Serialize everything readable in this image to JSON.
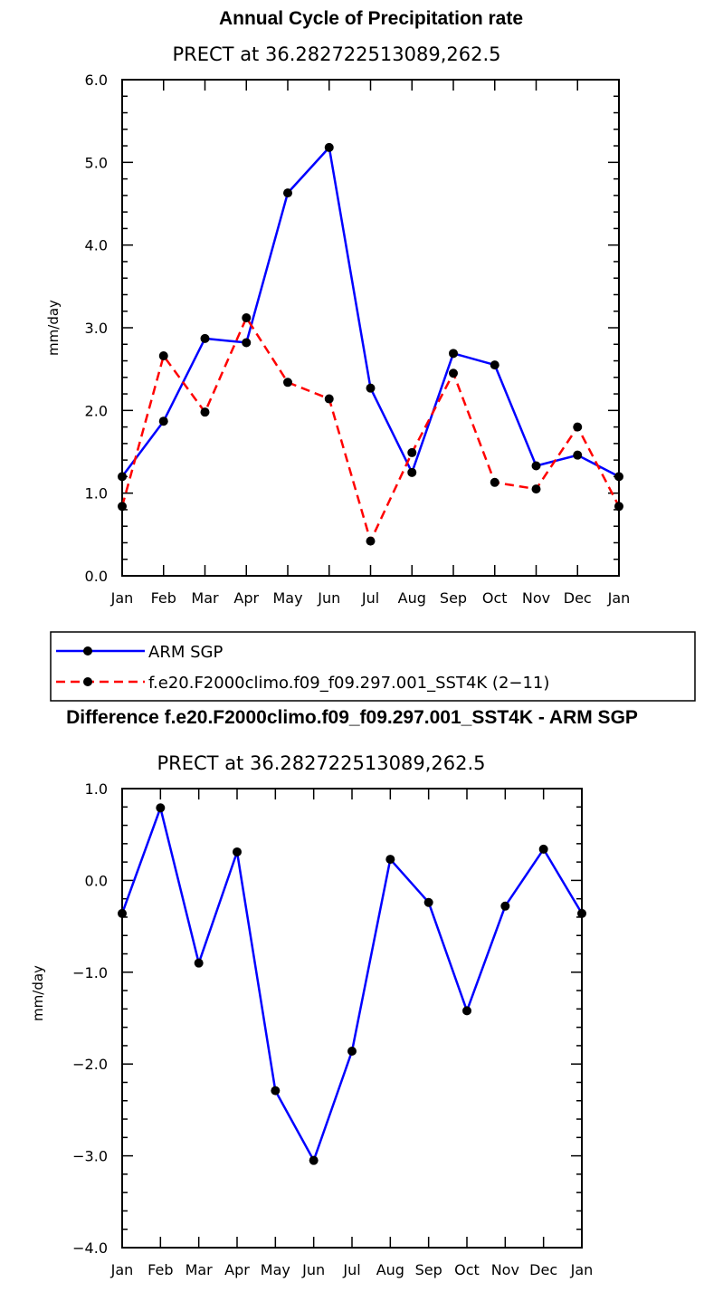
{
  "chart_data": [
    {
      "type": "line",
      "title": "Annual Cycle of Precipitation rate",
      "subtitle": "PRECT at 36.282722513089,262.5",
      "ylabel": "mm/day",
      "xlabel": "",
      "ylim": [
        0.0,
        6.0
      ],
      "yticks": [
        "0.0",
        "1.0",
        "2.0",
        "3.0",
        "4.0",
        "5.0",
        "6.0"
      ],
      "categories": [
        "Jan",
        "Feb",
        "Mar",
        "Apr",
        "May",
        "Jun",
        "Jul",
        "Aug",
        "Sep",
        "Oct",
        "Nov",
        "Dec",
        "Jan"
      ],
      "series": [
        {
          "name": "ARM SGP",
          "color": "#0000ff",
          "dash": "solid",
          "values": [
            1.2,
            1.87,
            2.87,
            2.82,
            4.63,
            5.18,
            2.27,
            1.25,
            2.69,
            2.55,
            1.33,
            1.46,
            1.2
          ]
        },
        {
          "name": "f.e20.F2000climo.f09_f09.297.001_SST4K (2−11)",
          "color": "#ff0000",
          "dash": "dashed",
          "values": [
            0.84,
            2.66,
            1.98,
            3.12,
            2.34,
            2.14,
            0.42,
            1.49,
            2.45,
            1.13,
            1.05,
            1.8,
            0.84
          ]
        }
      ]
    },
    {
      "type": "line",
      "title": "Difference f.e20.F2000climo.f09_f09.297.001_SST4K - ARM SGP",
      "subtitle": "PRECT at 36.282722513089,262.5",
      "ylabel": "mm/day",
      "xlabel": "",
      "ylim": [
        -4.0,
        1.0
      ],
      "yticks": [
        "−4.0",
        "−3.0",
        "−2.0",
        "−1.0",
        "0.0",
        "1.0"
      ],
      "categories": [
        "Jan",
        "Feb",
        "Mar",
        "Apr",
        "May",
        "Jun",
        "Jul",
        "Aug",
        "Sep",
        "Oct",
        "Nov",
        "Dec",
        "Jan"
      ],
      "series": [
        {
          "name": "Difference",
          "color": "#0000ff",
          "dash": "solid",
          "values": [
            -0.36,
            0.79,
            -0.9,
            0.31,
            -2.29,
            -3.05,
            -1.86,
            0.23,
            -0.24,
            -1.42,
            -0.28,
            0.34,
            -0.36
          ]
        }
      ]
    }
  ]
}
